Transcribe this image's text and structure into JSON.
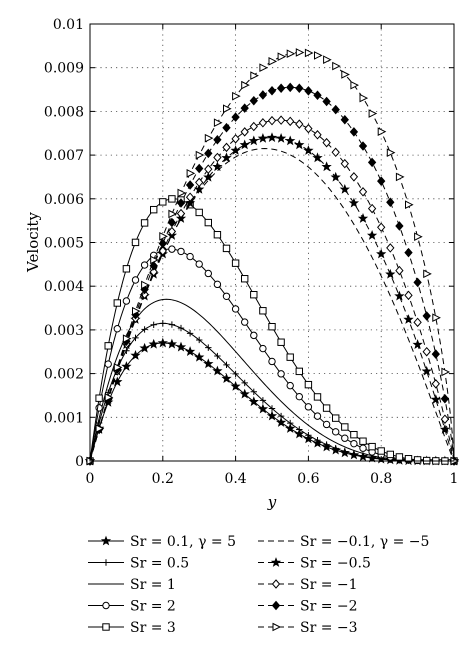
{
  "chart_data": {
    "type": "line",
    "title": "",
    "xlabel": "y",
    "ylabel": "Velocity",
    "xlim": [
      0,
      1
    ],
    "ylim": [
      0,
      0.01
    ],
    "xticks": [
      "0",
      "0.2",
      "0.4",
      "0.6",
      "0.8",
      "1"
    ],
    "yticks": [
      "0",
      "0.001",
      "0.002",
      "0.003",
      "0.004",
      "0.005",
      "0.006",
      "0.007",
      "0.008",
      "0.009",
      "0.01"
    ],
    "grid": true,
    "legend_position": "bottom",
    "series": [
      {
        "name": "Sr = 0.1, γ = 5",
        "marker": "star",
        "line": "solid",
        "peak_x": 0.2,
        "peak_y": 0.0027
      },
      {
        "name": "Sr = 0.5",
        "marker": "plus",
        "line": "solid",
        "peak_x": 0.2,
        "peak_y": 0.00315
      },
      {
        "name": "Sr = 1",
        "marker": "none",
        "line": "solid",
        "peak_x": 0.21,
        "peak_y": 0.0037
      },
      {
        "name": "Sr = 2",
        "marker": "circle",
        "line": "solid",
        "peak_x": 0.22,
        "peak_y": 0.00485
      },
      {
        "name": "Sr = 3",
        "marker": "square",
        "line": "solid",
        "peak_x": 0.23,
        "peak_y": 0.006
      },
      {
        "name": "Sr = −0.1, γ = −5",
        "marker": "none",
        "line": "dashed",
        "peak_x": 0.48,
        "peak_y": 0.00715
      },
      {
        "name": "Sr = −0.5",
        "marker": "star",
        "line": "dashed",
        "peak_x": 0.5,
        "peak_y": 0.0074
      },
      {
        "name": "Sr = −1",
        "marker": "diamond",
        "line": "dashed",
        "peak_x": 0.52,
        "peak_y": 0.0078
      },
      {
        "name": "Sr = −2",
        "marker": "filled-diamond",
        "line": "dashed",
        "peak_x": 0.55,
        "peak_y": 0.00855
      },
      {
        "name": "Sr = −3",
        "marker": "triangle-right",
        "line": "dashed",
        "peak_x": 0.58,
        "peak_y": 0.00935
      }
    ]
  }
}
